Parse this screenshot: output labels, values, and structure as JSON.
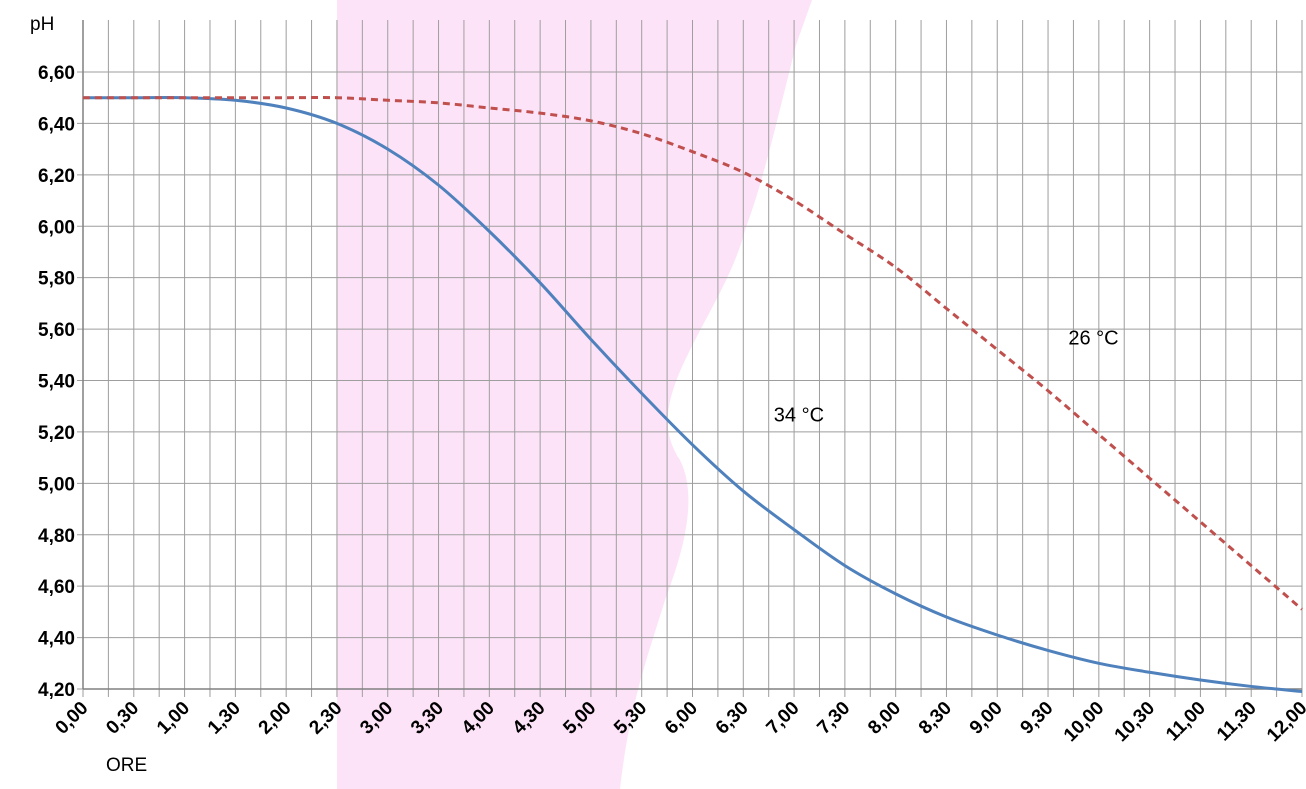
{
  "chart_data": {
    "type": "line",
    "ylabel": "pH",
    "xlabel": "ORE",
    "ylim": [
      4.2,
      6.6
    ],
    "yticks": [
      "4,20",
      "4,40",
      "4,60",
      "4,80",
      "5,00",
      "5,20",
      "5,40",
      "5,60",
      "5,80",
      "6,00",
      "6,20",
      "6,40",
      "6,60"
    ],
    "xlim": [
      0,
      12
    ],
    "x_tick_step": 0.25,
    "categories": [
      "0,00",
      "0,30",
      "1,00",
      "1,30",
      "2,00",
      "2,30",
      "3,00",
      "3,30",
      "4,00",
      "4,30",
      "5,00",
      "5,30",
      "6,00",
      "6,30",
      "7,00",
      "7,30",
      "8,00",
      "8,30",
      "9,00",
      "9,30",
      "10,00",
      "10,30",
      "11,00",
      "11,30",
      "12,00"
    ],
    "grid": true,
    "series": [
      {
        "name": "34 °C",
        "color": "#4f81bd",
        "style": "solid",
        "x": [
          0,
          0.5,
          1,
          1.5,
          2,
          2.5,
          3,
          3.5,
          4,
          4.5,
          5,
          5.5,
          6,
          6.5,
          7,
          7.5,
          8,
          8.5,
          9,
          9.5,
          10,
          10.5,
          11,
          11.5,
          12
        ],
        "values": [
          6.5,
          6.5,
          6.5,
          6.49,
          6.46,
          6.4,
          6.3,
          6.16,
          5.98,
          5.78,
          5.56,
          5.35,
          5.15,
          4.97,
          4.82,
          4.68,
          4.57,
          4.48,
          4.41,
          4.35,
          4.3,
          4.265,
          4.235,
          4.21,
          4.19
        ]
      },
      {
        "name": "26 °C",
        "color": "#c0504d",
        "style": "dashed",
        "x": [
          0,
          0.5,
          1,
          1.5,
          2,
          2.5,
          3,
          3.5,
          4,
          4.5,
          5,
          5.5,
          6,
          6.5,
          7,
          7.5,
          8,
          8.5,
          9,
          9.5,
          10,
          10.5,
          11,
          11.5,
          12
        ],
        "values": [
          6.5,
          6.5,
          6.5,
          6.5,
          6.5,
          6.5,
          6.49,
          6.48,
          6.46,
          6.44,
          6.41,
          6.36,
          6.29,
          6.21,
          6.1,
          5.97,
          5.84,
          5.68,
          5.52,
          5.36,
          5.19,
          5.02,
          4.85,
          4.68,
          4.51
        ]
      }
    ],
    "annotations": [
      {
        "text": "34 °C",
        "x": 6.8,
        "y": 5.24
      },
      {
        "text": "26 °C",
        "x": 9.7,
        "y": 5.54
      }
    ],
    "highlight_band": {
      "color": "#fde3f8"
    }
  }
}
